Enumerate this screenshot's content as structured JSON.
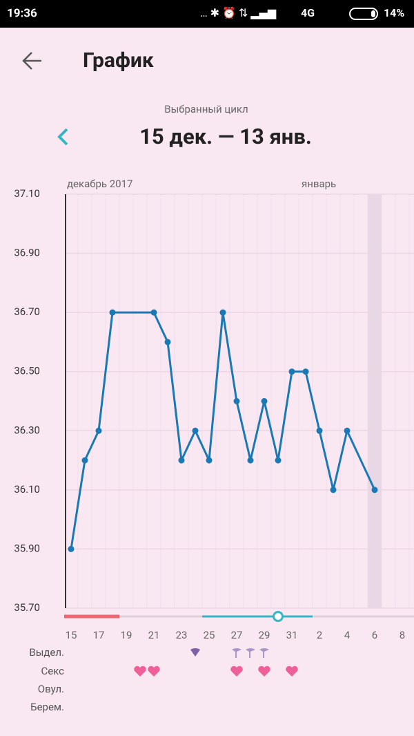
{
  "status_bar": {
    "time": "19:36",
    "network": "4G",
    "battery": "14%"
  },
  "header": {
    "title": "График"
  },
  "cycle": {
    "caption": "Выбранный цикл",
    "range": "15 дек. — 13 янв."
  },
  "months": [
    "декабрь 2017",
    "январь"
  ],
  "rows": [
    "Выдел.",
    "Секс",
    "Овул.",
    "Берем."
  ],
  "chart_data": {
    "type": "line",
    "categories": [
      "15",
      null,
      "17",
      null,
      "19",
      null,
      "21",
      null,
      "23",
      null,
      "25",
      null,
      "27",
      null,
      "29",
      null,
      "31",
      null,
      "2",
      null,
      "4",
      null,
      "6",
      null,
      "8"
    ],
    "series": [
      {
        "color": "#1a78b4",
        "values": [
          35.9,
          36.2,
          36.3,
          36.7,
          null,
          null,
          36.7,
          36.6,
          36.2,
          36.3,
          36.2,
          36.7,
          36.4,
          36.2,
          36.4,
          36.2,
          36.5,
          36.5,
          36.3,
          36.1,
          36.3,
          null,
          36.1,
          null,
          null
        ]
      }
    ],
    "ylim": [
      35.7,
      37.1
    ],
    "yticks": [
      {
        "value": 35.7,
        "label": "35.70"
      },
      {
        "value": 35.9,
        "label": "35.90"
      },
      {
        "value": 36.1,
        "label": "36.10"
      },
      {
        "value": 36.3,
        "label": "36.30"
      },
      {
        "value": 36.5,
        "label": "36.50"
      },
      {
        "value": 36.7,
        "label": "36.70"
      },
      {
        "value": 36.9,
        "label": "36.90"
      },
      {
        "value": 37.1,
        "label": "37.10"
      }
    ],
    "grid": true
  }
}
